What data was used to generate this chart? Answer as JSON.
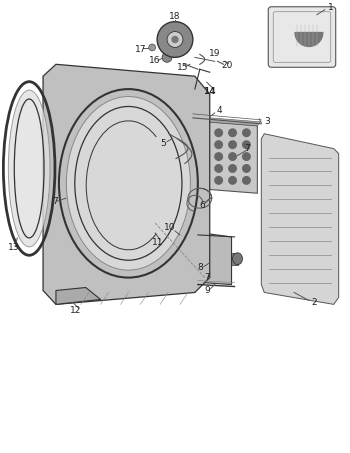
{
  "bg_color": "#ffffff",
  "gray": "#555555",
  "lgray": "#888888",
  "dgray": "#333333",
  "figsize": [
    3.5,
    4.53
  ],
  "dpi": 100
}
